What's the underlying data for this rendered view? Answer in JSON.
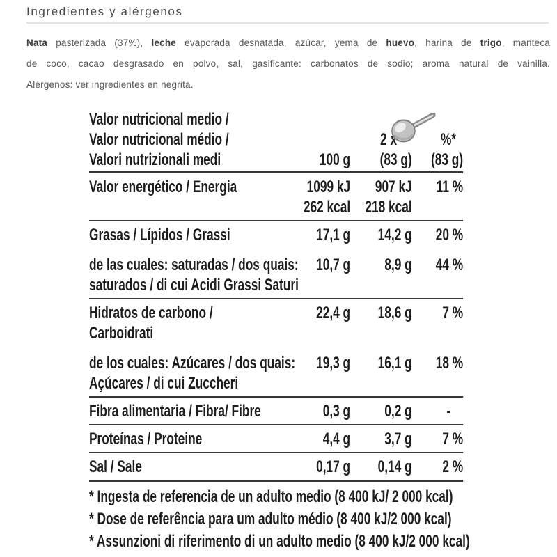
{
  "section": {
    "title": "Ingredientes y alérgenos"
  },
  "ingredients": {
    "lines": [
      {
        "justify": true,
        "segments": [
          {
            "t": "Nata",
            "b": true
          },
          {
            "t": " pasterizada (37%), ",
            "b": false
          },
          {
            "t": "leche",
            "b": true
          },
          {
            "t": " evaporada desnatada, azúcar, yema de ",
            "b": false
          },
          {
            "t": "huevo",
            "b": true
          },
          {
            "t": ", harina de ",
            "b": false
          },
          {
            "t": "trigo",
            "b": true
          },
          {
            "t": ", manteca",
            "b": false
          }
        ]
      },
      {
        "justify": true,
        "segments": [
          {
            "t": "de coco, cacao desgrasado en polvo, sal, gasificante: carbonatos de sodio; aroma natural de vainilla.",
            "b": false
          }
        ]
      },
      {
        "justify": false,
        "segments": [
          {
            "t": "Alérgenos: ver ingredientes en negrita.",
            "b": false
          }
        ]
      }
    ]
  },
  "nutrition": {
    "header": {
      "title_lines": [
        "Valor nutricional medio /",
        "Valor nutricional médio /",
        "Valori nutrizionali medi"
      ],
      "per100_label": "100 g",
      "serving_prefix": "2 x",
      "serving_icon": "spoon-icon",
      "serving_weight": "(83 g)",
      "percent_label": "%*",
      "percent_weight": "(83 g)"
    },
    "rows": [
      {
        "label_lines": [
          "Valor energético / Energia"
        ],
        "per_100g": [
          "1099 kJ",
          "262 kcal"
        ],
        "per_serving": [
          "907 kJ",
          "218 kcal"
        ],
        "percent": "11 %",
        "rule_after": true,
        "sub": false
      },
      {
        "label_lines": [
          "Grasas / Lípidos / Grassi"
        ],
        "per_100g": [
          "17,1 g"
        ],
        "per_serving": [
          "14,2 g"
        ],
        "percent": "20 %",
        "rule_after": false,
        "sub": false
      },
      {
        "label_lines": [
          "de las cuales: saturadas / dos quais:",
          "saturados / di cui Acidi Grassi Saturi"
        ],
        "per_100g": [
          "10,7 g"
        ],
        "per_serving": [
          "8,9 g"
        ],
        "percent": "44 %",
        "rule_after": true,
        "sub": true
      },
      {
        "label_lines": [
          "Hidratos de carbono /",
          "Carboidrati"
        ],
        "per_100g": [
          "22,4 g"
        ],
        "per_serving": [
          "18,6 g"
        ],
        "percent": "7 %",
        "rule_after": false,
        "sub": false
      },
      {
        "label_lines": [
          "de los cuales: Azúcares / dos quais:",
          "Açúcares / di cui Zuccheri"
        ],
        "per_100g": [
          "19,3 g"
        ],
        "per_serving": [
          "16,1 g"
        ],
        "percent": "18 %",
        "rule_after": true,
        "sub": true
      },
      {
        "label_lines": [
          "Fibra alimentaria / Fibra/ Fibre"
        ],
        "per_100g": [
          "0,3 g"
        ],
        "per_serving": [
          "0,2 g"
        ],
        "percent": "-",
        "rule_after": true,
        "sub": false
      },
      {
        "label_lines": [
          "Proteínas / Proteine"
        ],
        "per_100g": [
          "4,4 g"
        ],
        "per_serving": [
          "3,7 g"
        ],
        "percent": "7 %",
        "rule_after": true,
        "sub": false
      },
      {
        "label_lines": [
          "Sal / Sale"
        ],
        "per_100g": [
          "0,17 g"
        ],
        "per_serving": [
          "0,14 g"
        ],
        "percent": "2 %",
        "rule_after": true,
        "sub": false
      }
    ],
    "footnotes": [
      "* Ingesta de referencia de un adulto medio (8 400 kJ/ 2 000 kcal)",
      "* Dose de referência para um adulto médio (8 400 kJ/2 000 kcal)",
      "* Assunzioni di riferimento di un adulto medio (8 400 kJ/2 000 kcal)"
    ]
  },
  "colors": {
    "background": "#ffffff",
    "heading_text": "#4b4b4b",
    "divider": "#e4e4e4",
    "body_text": "#575757",
    "label_ink": "#1d1d1d",
    "label_rule": "#373737"
  }
}
